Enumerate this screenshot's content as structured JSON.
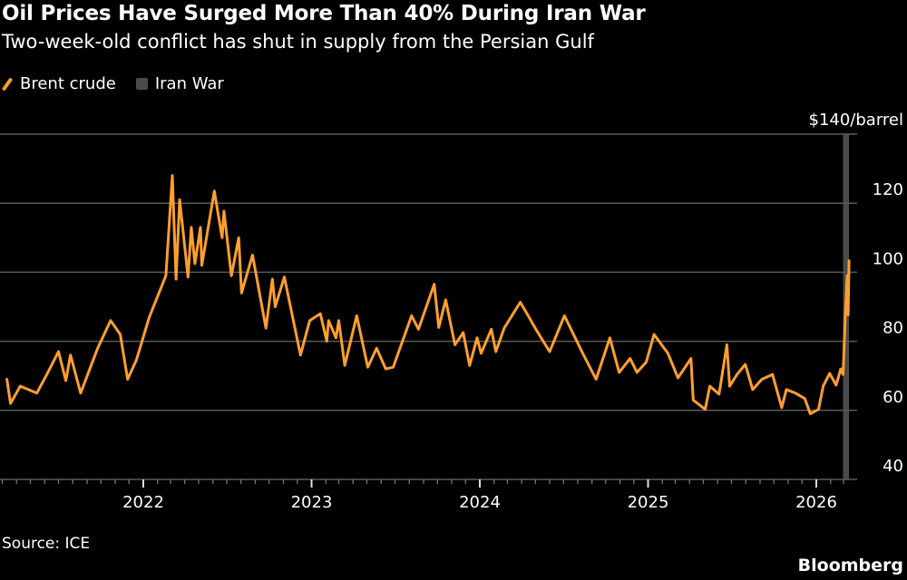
{
  "chart_data": {
    "type": "line",
    "title": "Oil Prices Have Surged More Than 40% During Iran War",
    "subtitle": "Two-week-old conflict has shut in supply from the Persian Gulf",
    "source": "Source: ICE",
    "brand": "Bloomberg",
    "legend": [
      {
        "label": "Brent crude",
        "kind": "line",
        "color": "#ff9f2e"
      },
      {
        "label": "Iran War",
        "kind": "band",
        "color": "#4a4a4a"
      }
    ],
    "legend_placement": "top-left",
    "y_axis": {
      "side": "right",
      "ylim": [
        40,
        140
      ],
      "ticks": [
        40,
        60,
        80,
        100,
        120,
        140
      ],
      "tick_labels": [
        "40",
        "60",
        "80",
        "100",
        "120",
        "$140/barrel"
      ],
      "grid": true
    },
    "x_axis": {
      "xlim": [
        "2021-03-04",
        "2026-04-01"
      ],
      "ticks": [
        "2022-01-01",
        "2023-01-01",
        "2024-01-01",
        "2025-01-01",
        "2026-01-01"
      ],
      "tick_labels": [
        "2022",
        "2023",
        "2024",
        "2025",
        "2026"
      ],
      "minor_ticks": "monthly"
    },
    "band": {
      "label": "Iran War",
      "start": "2026-02-28",
      "end": "2026-03-13",
      "color": "#4a4a4a"
    },
    "series": [
      {
        "name": "Brent crude",
        "color": "#ff9f2e",
        "points": [
          [
            "2021-03-11",
            69
          ],
          [
            "2021-03-19",
            62
          ],
          [
            "2021-04-09",
            67
          ],
          [
            "2021-05-15",
            65
          ],
          [
            "2021-06-08",
            71
          ],
          [
            "2021-07-01",
            77
          ],
          [
            "2021-07-17",
            68.6
          ],
          [
            "2021-07-27",
            76
          ],
          [
            "2021-08-18",
            65
          ],
          [
            "2021-09-24",
            78
          ],
          [
            "2021-10-22",
            86
          ],
          [
            "2021-11-12",
            82
          ],
          [
            "2021-11-28",
            69
          ],
          [
            "2021-12-17",
            74.6
          ],
          [
            "2022-01-14",
            87
          ],
          [
            "2022-02-19",
            99
          ],
          [
            "2022-03-05",
            128
          ],
          [
            "2022-03-13",
            98
          ],
          [
            "2022-03-21",
            121
          ],
          [
            "2022-04-08",
            98.6
          ],
          [
            "2022-04-15",
            113
          ],
          [
            "2022-04-23",
            102.5
          ],
          [
            "2022-05-05",
            113
          ],
          [
            "2022-05-08",
            102
          ],
          [
            "2022-06-04",
            123.5
          ],
          [
            "2022-06-21",
            110
          ],
          [
            "2022-06-25",
            117.7
          ],
          [
            "2022-07-11",
            99
          ],
          [
            "2022-07-27",
            110
          ],
          [
            "2022-08-02",
            94
          ],
          [
            "2022-08-26",
            105
          ],
          [
            "2022-09-24",
            83.8
          ],
          [
            "2022-10-08",
            98
          ],
          [
            "2022-10-14",
            90
          ],
          [
            "2022-11-03",
            98.6
          ],
          [
            "2022-12-08",
            76
          ],
          [
            "2022-12-28",
            86
          ],
          [
            "2023-01-20",
            88
          ],
          [
            "2023-02-03",
            80
          ],
          [
            "2023-02-07",
            86
          ],
          [
            "2023-02-23",
            81
          ],
          [
            "2023-03-01",
            86
          ],
          [
            "2023-03-14",
            73
          ],
          [
            "2023-04-09",
            87.4
          ],
          [
            "2023-05-03",
            72.5
          ],
          [
            "2023-05-22",
            78
          ],
          [
            "2023-06-11",
            72
          ],
          [
            "2023-06-27",
            72.5
          ],
          [
            "2023-08-06",
            87.4
          ],
          [
            "2023-08-21",
            83.5
          ],
          [
            "2023-09-24",
            96.5
          ],
          [
            "2023-10-04",
            84
          ],
          [
            "2023-10-19",
            92
          ],
          [
            "2023-11-08",
            79
          ],
          [
            "2023-11-26",
            82.5
          ],
          [
            "2023-12-10",
            73
          ],
          [
            "2023-12-26",
            81
          ],
          [
            "2024-01-04",
            76.5
          ],
          [
            "2024-01-26",
            83.5
          ],
          [
            "2024-02-05",
            77
          ],
          [
            "2024-02-23",
            83.8
          ],
          [
            "2024-03-29",
            91.3
          ],
          [
            "2024-04-14",
            87.7
          ],
          [
            "2024-05-02",
            83.5
          ],
          [
            "2024-06-01",
            77
          ],
          [
            "2024-07-03",
            87.4
          ],
          [
            "2024-08-12",
            76.5
          ],
          [
            "2024-09-10",
            69
          ],
          [
            "2024-10-10",
            81
          ],
          [
            "2024-10-30",
            71
          ],
          [
            "2024-11-23",
            75
          ],
          [
            "2024-12-08",
            71
          ],
          [
            "2024-12-28",
            74
          ],
          [
            "2025-01-14",
            82
          ],
          [
            "2025-02-13",
            76.5
          ],
          [
            "2025-03-07",
            69.4
          ],
          [
            "2025-04-04",
            75
          ],
          [
            "2025-04-09",
            63
          ],
          [
            "2025-05-05",
            60.3
          ],
          [
            "2025-05-15",
            67
          ],
          [
            "2025-06-04",
            64.7
          ],
          [
            "2025-06-21",
            79
          ],
          [
            "2025-06-27",
            67
          ],
          [
            "2025-07-13",
            70.4
          ],
          [
            "2025-07-31",
            73.3
          ],
          [
            "2025-08-16",
            66
          ],
          [
            "2025-09-05",
            69
          ],
          [
            "2025-09-28",
            70.4
          ],
          [
            "2025-10-18",
            60.8
          ],
          [
            "2025-10-28",
            66
          ],
          [
            "2025-11-17",
            65
          ],
          [
            "2025-12-07",
            63.4
          ],
          [
            "2025-12-19",
            59
          ],
          [
            "2026-01-06",
            60.3
          ],
          [
            "2026-01-16",
            67
          ],
          [
            "2026-01-30",
            70.7
          ],
          [
            "2026-02-13",
            67.3
          ],
          [
            "2026-02-23",
            72
          ],
          [
            "2026-02-28",
            70.4
          ],
          [
            "2026-03-05",
            87.7
          ],
          [
            "2026-03-09",
            99
          ],
          [
            "2026-03-11",
            87.7
          ],
          [
            "2026-03-13",
            103.3
          ]
        ]
      }
    ]
  }
}
